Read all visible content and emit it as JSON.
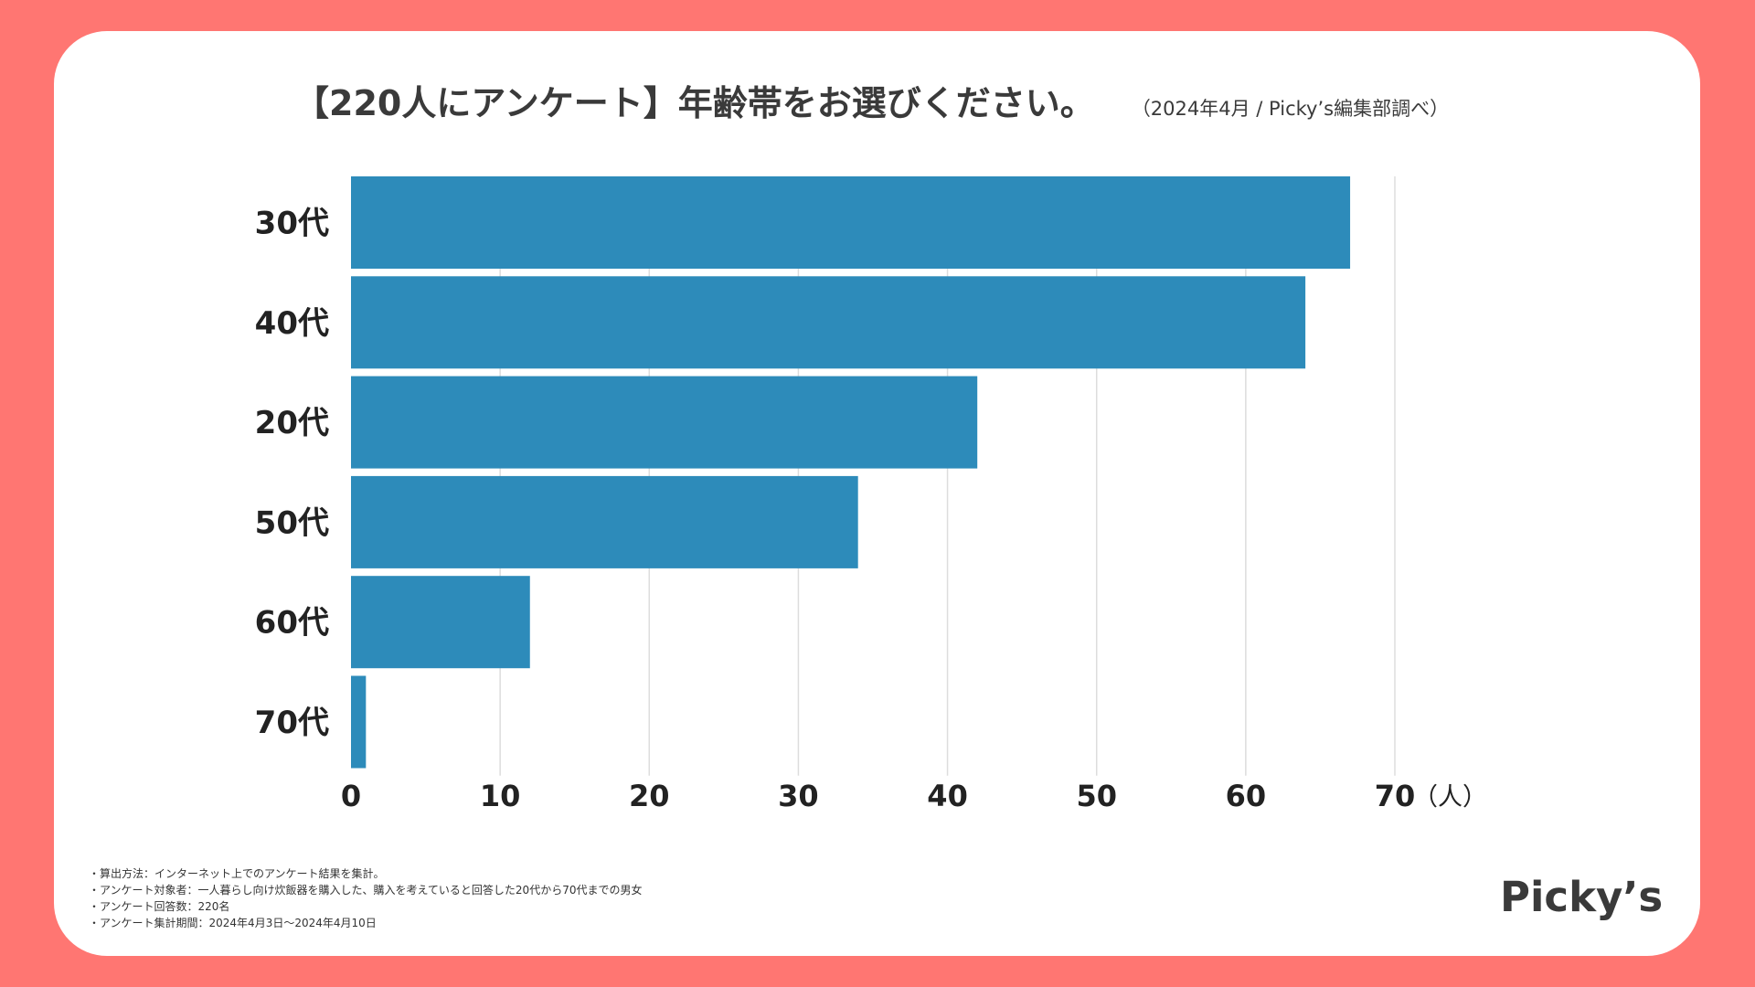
{
  "header": {
    "title": "【220人にアンケート】年齢帯をお選びください。",
    "subtitle": "（2024年4月 / Picky’s編集部調べ）"
  },
  "chart_data": {
    "type": "bar",
    "orientation": "horizontal",
    "categories": [
      "30代",
      "40代",
      "20代",
      "50代",
      "60代",
      "70代"
    ],
    "values": [
      67,
      64,
      42,
      34,
      12,
      1
    ],
    "title": "【220人にアンケート】年齢帯をお選びください。",
    "xlabel": "（人）",
    "ylabel": "",
    "xlim": [
      0,
      70
    ],
    "x_ticks": [
      "0",
      "10",
      "20",
      "30",
      "40",
      "50",
      "60",
      "70"
    ],
    "grid": true,
    "legend": "none"
  },
  "colors": {
    "background": "#FF7672",
    "card": "#FFFFFF",
    "bar": "#2D8BBA",
    "grid": "#DDDDDD",
    "text": "#222222"
  },
  "notes": [
    "・算出方法：インターネット上でのアンケート結果を集計。",
    "・アンケート対象者：一人暮らし向け炊飯器を購入した、購入を考えていると回答した20代から70代までの男女",
    "・アンケート回答数：220名",
    "・アンケート集計期間：2024年4月3日〜2024年4月10日"
  ],
  "brand": {
    "logo_text": "Picky’s"
  }
}
